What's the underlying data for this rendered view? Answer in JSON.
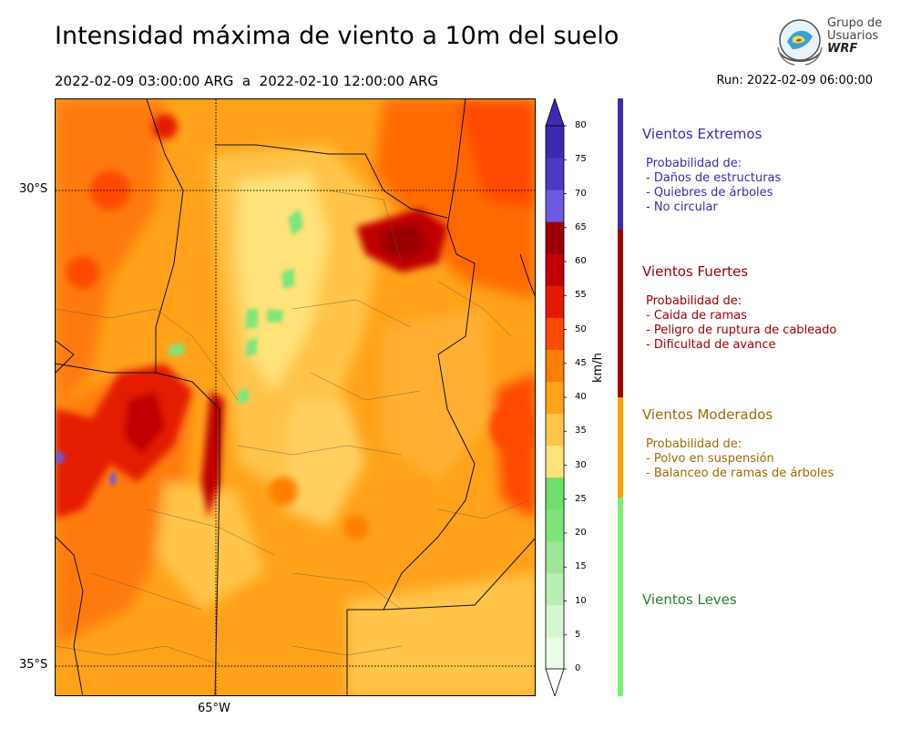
{
  "title": "Intensidad máxima de viento a 10m del suelo",
  "period": "2022-02-09 03:00:00 ARG  a  2022-02-10 12:00:00 ARG",
  "run": "Run: 2022-02-09 06:00:00",
  "logo": {
    "line1": "Grupo de",
    "line2": "Usuarios",
    "line3": "WRF"
  },
  "map": {
    "lat_labels": [
      "30°S",
      "35°S"
    ],
    "lon_labels": [
      "65°W"
    ]
  },
  "colorbar": {
    "unit": "km/h",
    "ticks": [
      "0",
      "5",
      "10",
      "15",
      "20",
      "25",
      "30",
      "35",
      "40",
      "45",
      "50",
      "55",
      "60",
      "65",
      "70",
      "75",
      "80"
    ],
    "colors": [
      "#eafbe8",
      "#d6f6d2",
      "#baefb4",
      "#9ce896",
      "#7fe57a",
      "#6fe06c",
      "#ffe27a",
      "#ffc44a",
      "#ffa21a",
      "#ff7f00",
      "#ff4a00",
      "#e41a00",
      "#c00000",
      "#9a0000",
      "#6a5be0",
      "#4a3ac8",
      "#3a2ab0"
    ],
    "overflow_color": "#3f2ab2"
  },
  "categories": [
    {
      "title": "Vientos Extremos",
      "color": "#3c2bb0",
      "text_color": "#3c2bb0",
      "lines": [
        "Probabilidad de:",
        "- Daños de estructuras",
        "- Quiebres de árboles",
        "- No circular"
      ]
    },
    {
      "title": "Vientos Fuertes",
      "color": "#a00000",
      "text_color": "#a00000",
      "lines": [
        "Probabilidad de:",
        "- Caida de ramas",
        "- Peligro de ruptura de cableado",
        "- Dificultad de avance"
      ]
    },
    {
      "title": "Vientos Moderados",
      "color": "#ff9f00",
      "text_color": "#a06a00",
      "lines": [
        "Probabilidad de:",
        "- Polvo en suspensión",
        "- Balanceo de ramas de árboles"
      ]
    },
    {
      "title": "Vientos Leves",
      "color": "#7aef70",
      "text_color": "#2e7d32",
      "lines": []
    }
  ]
}
